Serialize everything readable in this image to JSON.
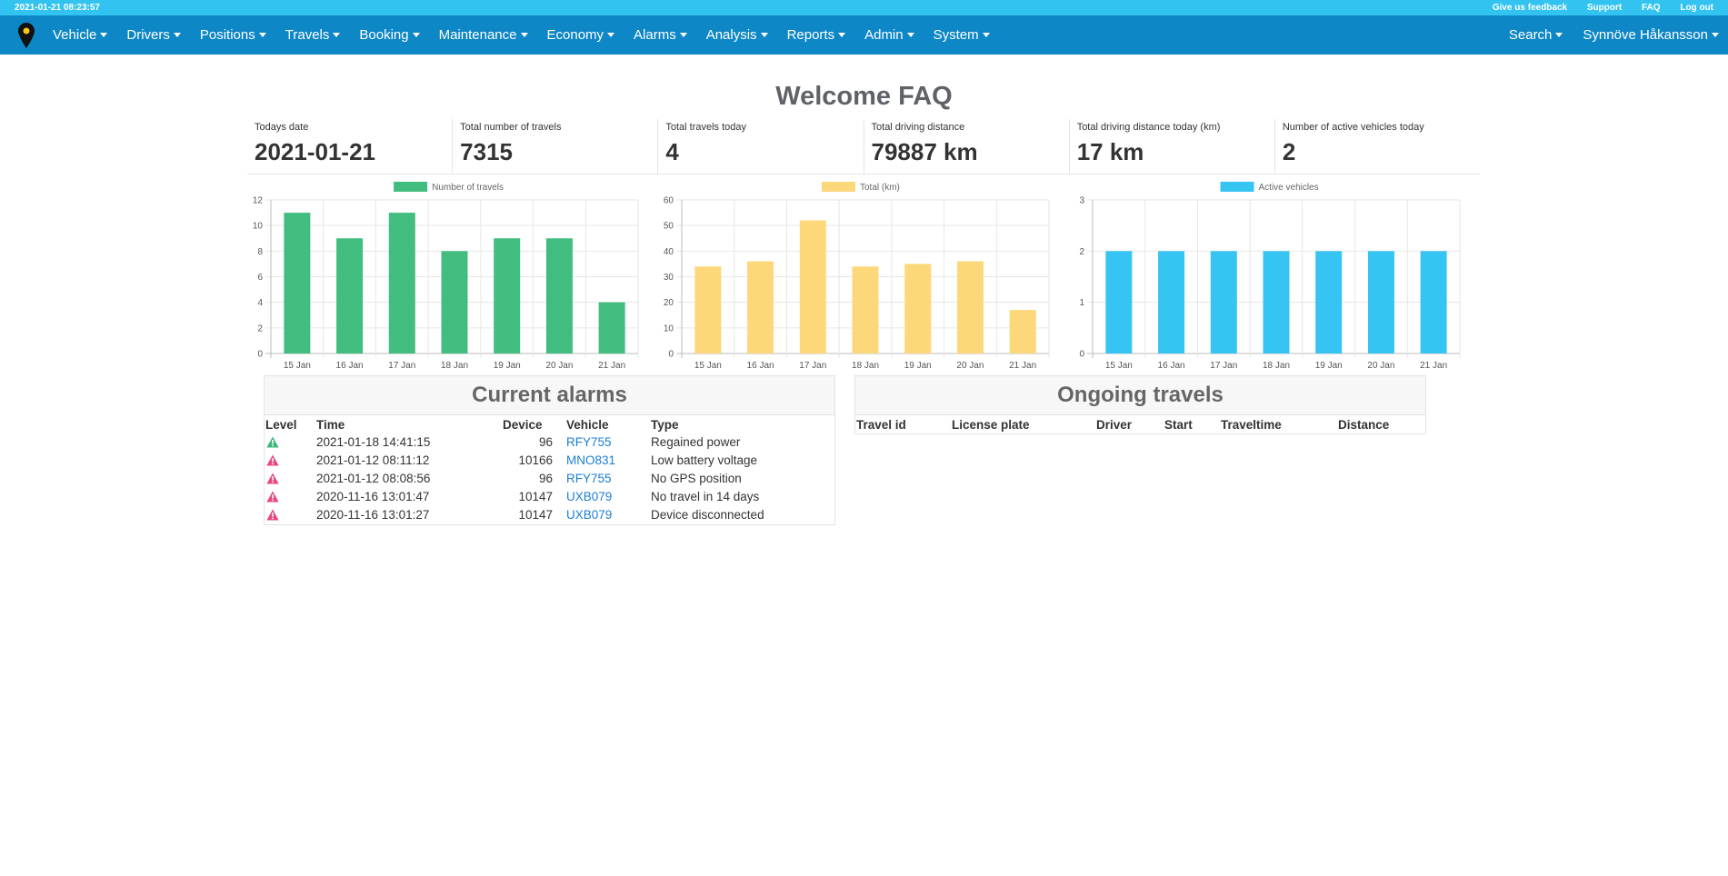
{
  "topbar": {
    "datetime": "2021-01-21 08:23:57",
    "links": [
      "Give us feedback",
      "Support",
      "FAQ",
      "Log out"
    ]
  },
  "nav": {
    "items": [
      "Vehicle",
      "Drivers",
      "Positions",
      "Travels",
      "Booking",
      "Maintenance",
      "Economy",
      "Alarms",
      "Analysis",
      "Reports",
      "Admin",
      "System"
    ],
    "search": "Search",
    "user": "Synnöve Håkansson"
  },
  "page_title": "Welcome FAQ",
  "stats": [
    {
      "label": "Todays date",
      "value": "2021-01-21"
    },
    {
      "label": "Total number of travels",
      "value": "7315"
    },
    {
      "label": "Total travels today",
      "value": "4"
    },
    {
      "label": "Total driving distance",
      "value": "79887 km"
    },
    {
      "label": "Total driving distance today (km)",
      "value": "17 km"
    },
    {
      "label": "Number of active vehicles today",
      "value": "2"
    }
  ],
  "chart_data": [
    {
      "type": "bar",
      "categories": [
        "15 Jan",
        "16 Jan",
        "17 Jan",
        "18 Jan",
        "19 Jan",
        "20 Jan",
        "21 Jan"
      ],
      "series": [
        {
          "name": "Number of travels",
          "values": [
            11,
            9,
            11,
            8,
            9,
            9,
            4
          ]
        }
      ],
      "ylim": [
        0,
        12
      ],
      "yticks": [
        0,
        2,
        4,
        6,
        8,
        10,
        12
      ],
      "color": "#42bd80",
      "legend": "top",
      "grid": true
    },
    {
      "type": "bar",
      "categories": [
        "15 Jan",
        "16 Jan",
        "17 Jan",
        "18 Jan",
        "19 Jan",
        "20 Jan",
        "21 Jan"
      ],
      "series": [
        {
          "name": "Total (km)",
          "values": [
            34,
            36,
            52,
            34,
            35,
            36,
            17
          ]
        }
      ],
      "ylim": [
        0,
        60
      ],
      "yticks": [
        0,
        10,
        20,
        30,
        40,
        50,
        60
      ],
      "color": "#fdd87b",
      "legend": "top",
      "grid": true
    },
    {
      "type": "bar",
      "categories": [
        "15 Jan",
        "16 Jan",
        "17 Jan",
        "18 Jan",
        "19 Jan",
        "20 Jan",
        "21 Jan"
      ],
      "series": [
        {
          "name": "Active vehicles",
          "values": [
            2,
            2,
            2,
            2,
            2,
            2,
            2
          ]
        }
      ],
      "ylim": [
        0,
        3
      ],
      "yticks": [
        0,
        1,
        2,
        3
      ],
      "color": "#36c4f2",
      "legend": "top",
      "grid": true
    }
  ],
  "alarms": {
    "title": "Current alarms",
    "columns": [
      "Level",
      "Time",
      "Device",
      "Vehicle",
      "Type"
    ],
    "rows": [
      {
        "level_color": "#3cb878",
        "time": "2021-01-18 14:41:15",
        "device": "96",
        "vehicle": "RFY755",
        "type": "Regained power"
      },
      {
        "level_color": "#e8467c",
        "time": "2021-01-12 08:11:12",
        "device": "10166",
        "vehicle": "MNO831",
        "type": "Low battery voltage"
      },
      {
        "level_color": "#e8467c",
        "time": "2021-01-12 08:08:56",
        "device": "96",
        "vehicle": "RFY755",
        "type": "No GPS position"
      },
      {
        "level_color": "#e8467c",
        "time": "2020-11-16 13:01:47",
        "device": "10147",
        "vehicle": "UXB079",
        "type": "No travel in 14 days"
      },
      {
        "level_color": "#e8467c",
        "time": "2020-11-16 13:01:27",
        "device": "10147",
        "vehicle": "UXB079",
        "type": "Device disconnected"
      }
    ]
  },
  "ongoing": {
    "title": "Ongoing travels",
    "columns": [
      "Travel id",
      "License plate",
      "Driver",
      "Start",
      "Traveltime",
      "Distance"
    ]
  },
  "colors": {
    "topstrip": "#33c3f0",
    "navbar": "#0e87c7",
    "link": "#1a7fd4"
  }
}
